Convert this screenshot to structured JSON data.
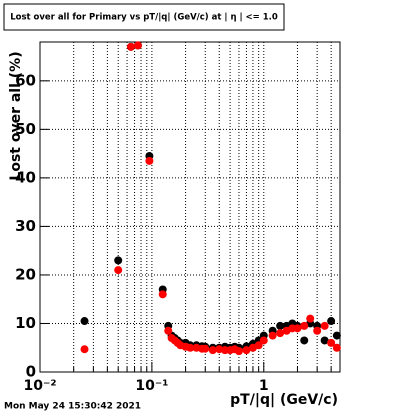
{
  "chart_data": {
    "type": "scatter",
    "title": "Lost over all for Primary vs pT/|q| (GeV/c) at | η | <= 1.0",
    "xlabel": "pT/|q| (GeV/c)",
    "ylabel": "Lost over all (%)",
    "footer": "Mon May 24 15:30:42 2021",
    "xscale": "log",
    "xlim": [
      0.01,
      4.8
    ],
    "ylim": [
      0,
      68
    ],
    "xticks": [
      {
        "value": 0.01,
        "label": "10⁻²"
      },
      {
        "value": 0.1,
        "label": "10⁻¹"
      },
      1
    ],
    "xgrid_minor": [
      0.02,
      0.03,
      0.04,
      0.05,
      0.06,
      0.07,
      0.08,
      0.09,
      0.2,
      0.3,
      0.4,
      0.5,
      0.6,
      0.7,
      0.8,
      0.9,
      2,
      3,
      4
    ],
    "yticks": [
      0,
      10,
      20,
      30,
      40,
      50,
      60
    ],
    "grid": true,
    "x": [
      0.025,
      0.05,
      0.065,
      0.075,
      0.095,
      0.125,
      0.14,
      0.15,
      0.16,
      0.17,
      0.18,
      0.2,
      0.22,
      0.25,
      0.28,
      0.3,
      0.35,
      0.4,
      0.45,
      0.5,
      0.55,
      0.6,
      0.7,
      0.8,
      0.9,
      1.0,
      1.2,
      1.4,
      1.6,
      1.8,
      2.0,
      2.3,
      2.6,
      3.0,
      3.5,
      4.0,
      4.5
    ],
    "series": [
      {
        "color": "#000000",
        "values": [
          10.5,
          23,
          67,
          67.3,
          44.5,
          17,
          9.5,
          7.5,
          7,
          6.5,
          6,
          6,
          5.5,
          5.5,
          5.3,
          5.2,
          5,
          5,
          5.2,
          5,
          5.2,
          5,
          5.3,
          5.8,
          6.5,
          7.5,
          8.5,
          9.5,
          9.5,
          10,
          9.5,
          6.5,
          10,
          9.5,
          6.5,
          10.5,
          7.5
        ]
      },
      {
        "color": "#ff0000",
        "values": [
          4.7,
          21,
          67,
          67.3,
          43.5,
          16,
          8.5,
          7,
          6.5,
          6,
          5.5,
          5.2,
          5,
          5,
          4.8,
          4.8,
          4.5,
          4.7,
          4.5,
          4.5,
          4.7,
          4.3,
          4.5,
          5,
          5.5,
          6.5,
          7.5,
          8,
          8.5,
          9,
          9,
          9.5,
          11,
          8.5,
          9.5,
          6,
          5
        ]
      }
    ]
  }
}
